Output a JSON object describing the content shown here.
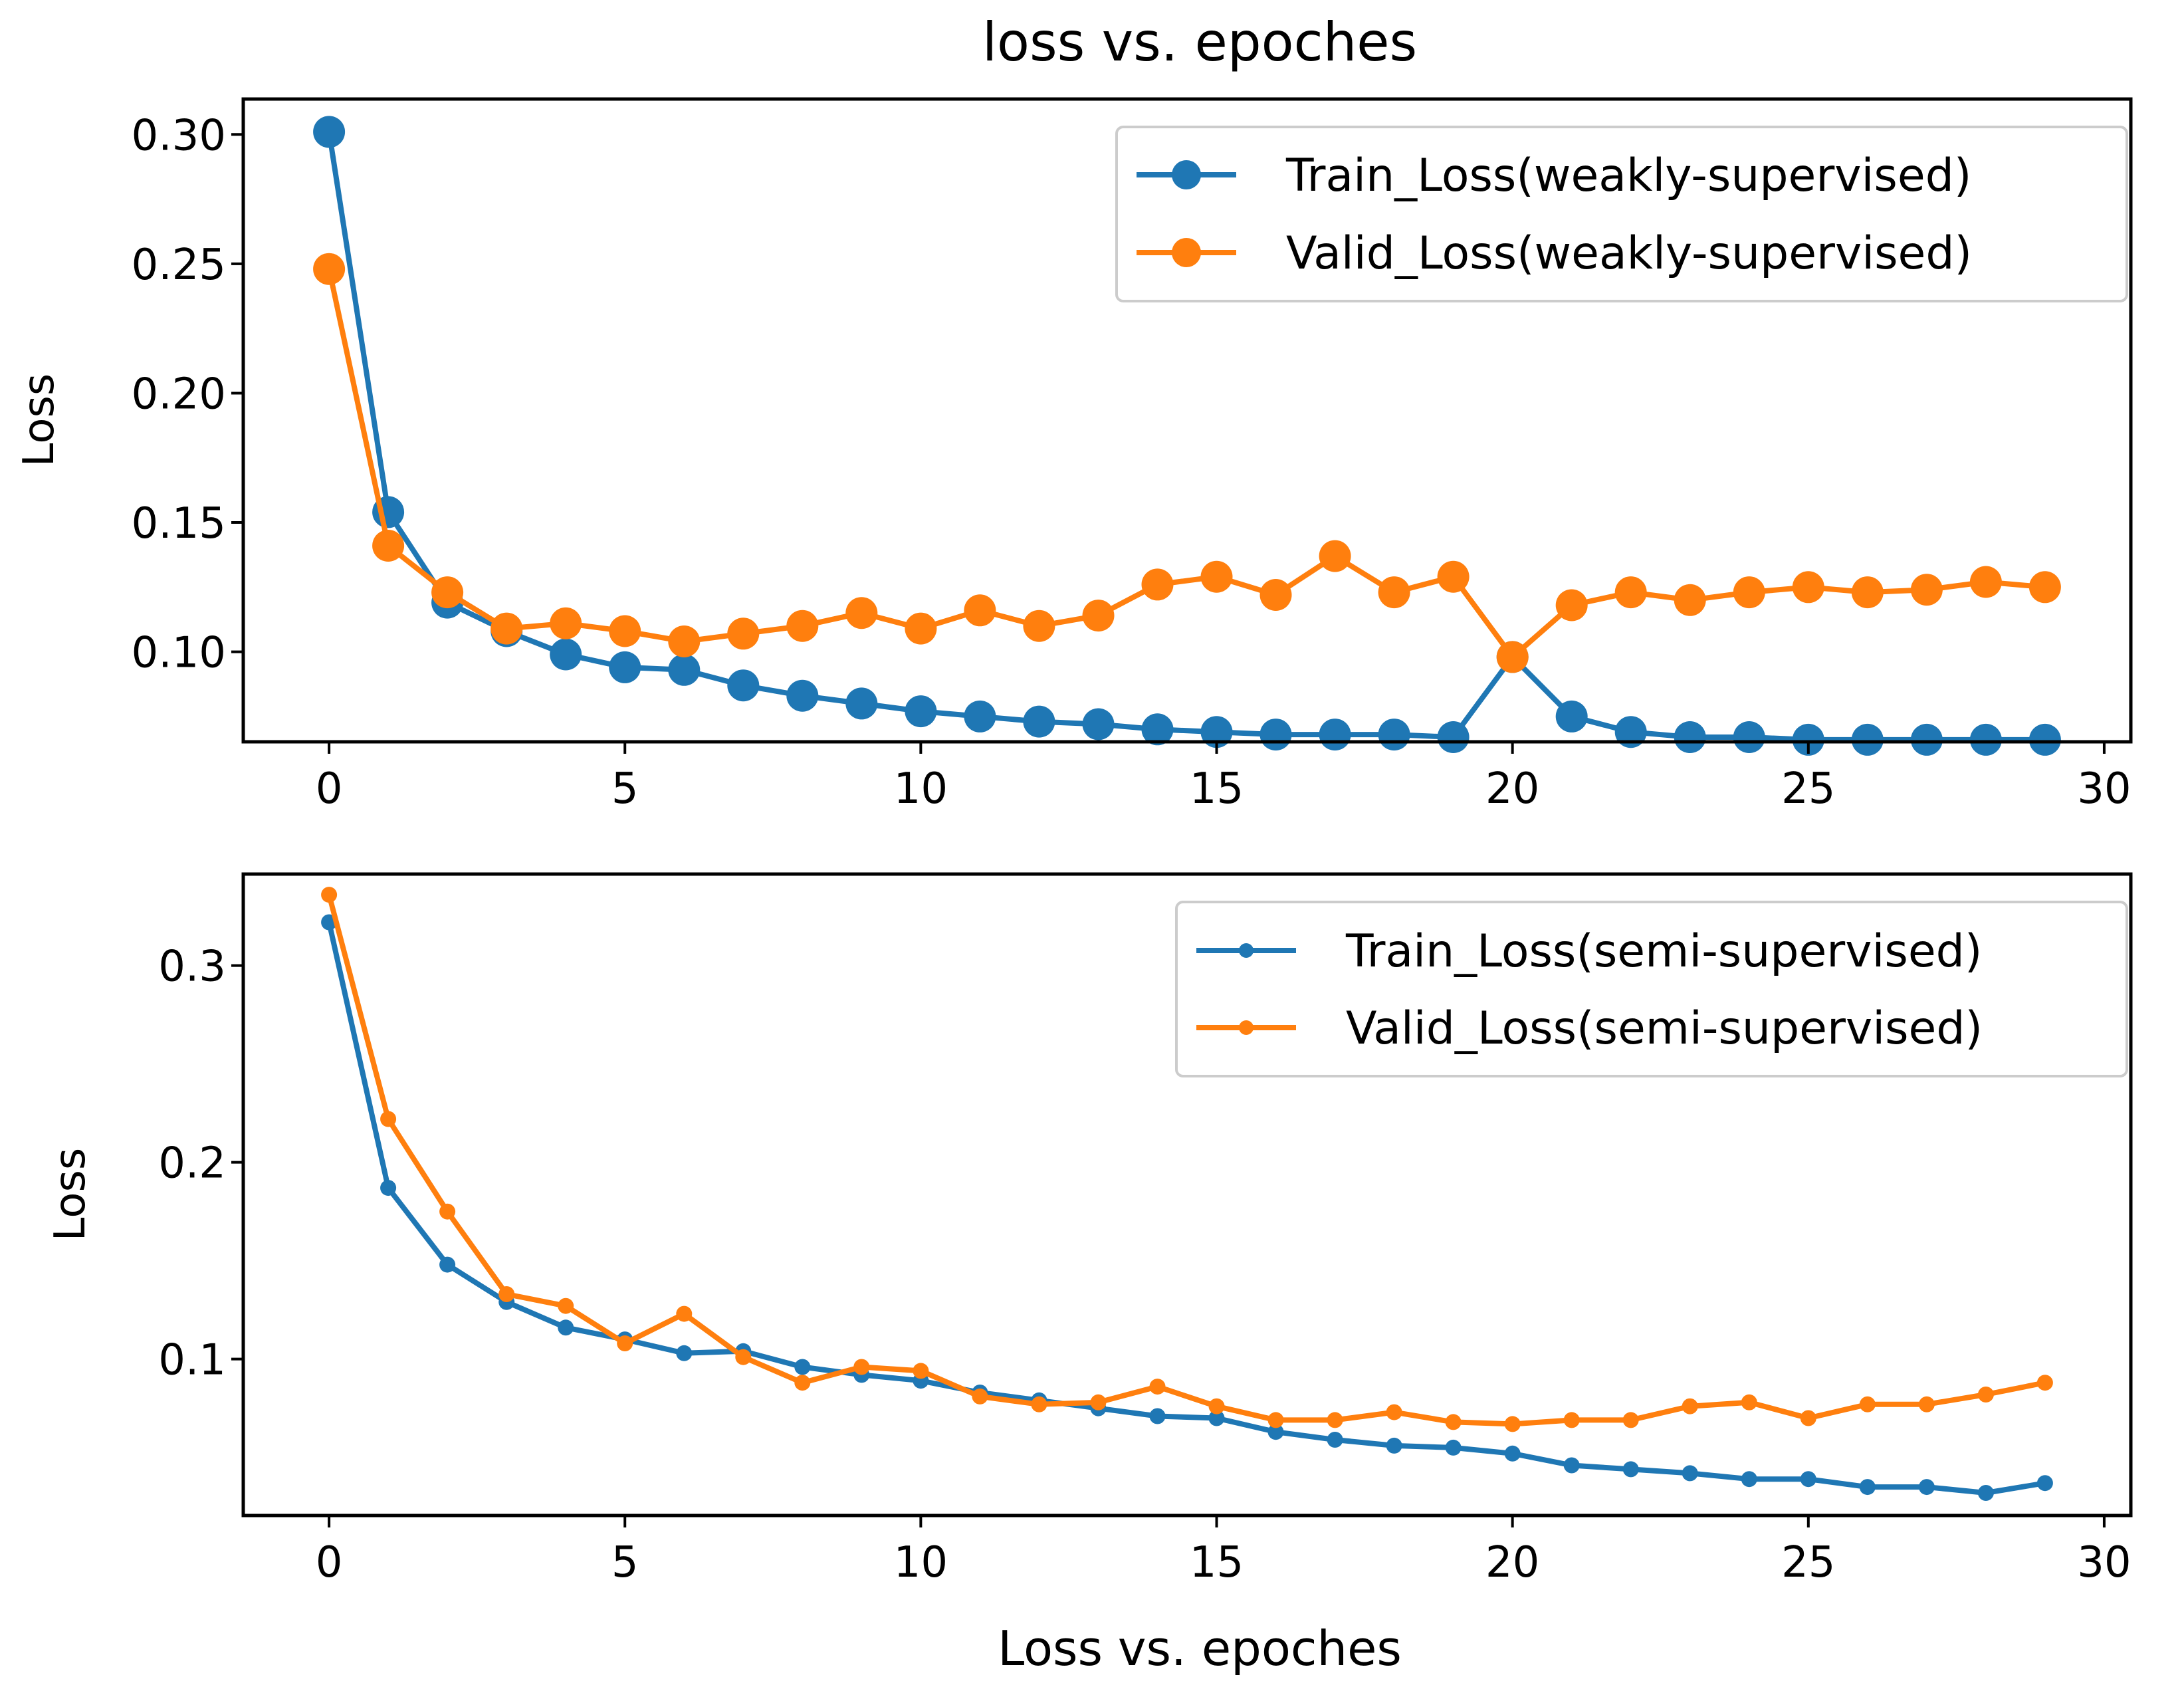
{
  "figure_title": "loss vs. epoches",
  "chart_data": [
    {
      "type": "line",
      "title": "loss vs. epoches",
      "xlabel": "",
      "ylabel": "Loss",
      "xlim": [
        -1.45,
        30.45
      ],
      "ylim": [
        0.0652,
        0.3137
      ],
      "xticks": [
        0,
        5,
        10,
        15,
        20,
        25,
        30
      ],
      "xtick_labels": [
        "0",
        "5",
        "10",
        "15",
        "20",
        "25",
        "30"
      ],
      "yticks": [
        0.1,
        0.15,
        0.2,
        0.25,
        0.3
      ],
      "ytick_labels": [
        "0.10",
        "0.15",
        "0.20",
        "0.25",
        "0.30"
      ],
      "grid": false,
      "legend_position": "top-right",
      "marker_size": "large",
      "x": [
        0,
        1,
        2,
        3,
        4,
        5,
        6,
        7,
        8,
        9,
        10,
        11,
        12,
        13,
        14,
        15,
        16,
        17,
        18,
        19,
        20,
        21,
        22,
        23,
        24,
        25,
        26,
        27,
        28,
        29
      ],
      "series": [
        {
          "name": "Train_Loss(weakly-supervised)",
          "color": "#1f77b4",
          "values": [
            0.301,
            0.154,
            0.119,
            0.108,
            0.099,
            0.094,
            0.093,
            0.087,
            0.083,
            0.08,
            0.077,
            0.075,
            0.073,
            0.072,
            0.07,
            0.069,
            0.068,
            0.068,
            0.068,
            0.067,
            0.098,
            0.075,
            0.069,
            0.067,
            0.067,
            0.066,
            0.066,
            0.066,
            0.066,
            0.066
          ]
        },
        {
          "name": "Valid_Loss(weakly-supervised)",
          "color": "#ff7f0e",
          "values": [
            0.248,
            0.141,
            0.123,
            0.109,
            0.111,
            0.108,
            0.104,
            0.107,
            0.11,
            0.115,
            0.109,
            0.116,
            0.11,
            0.114,
            0.126,
            0.129,
            0.122,
            0.137,
            0.123,
            0.129,
            0.098,
            0.118,
            0.123,
            0.12,
            0.123,
            0.125,
            0.123,
            0.124,
            0.127,
            0.125
          ]
        }
      ]
    },
    {
      "type": "line",
      "title": "",
      "xlabel": "Loss vs. epoches",
      "ylabel": "Loss",
      "xlim": [
        -1.45,
        30.45
      ],
      "ylim": [
        0.0205,
        0.3465
      ],
      "xticks": [
        0,
        5,
        10,
        15,
        20,
        25,
        30
      ],
      "xtick_labels": [
        "0",
        "5",
        "10",
        "15",
        "20",
        "25",
        "30"
      ],
      "yticks": [
        0.1,
        0.2,
        0.3
      ],
      "ytick_labels": [
        "0.1",
        "0.2",
        "0.3"
      ],
      "grid": false,
      "legend_position": "top-right",
      "marker_size": "small",
      "x": [
        0,
        1,
        2,
        3,
        4,
        5,
        6,
        7,
        8,
        9,
        10,
        11,
        12,
        13,
        14,
        15,
        16,
        17,
        18,
        19,
        20,
        21,
        22,
        23,
        24,
        25,
        26,
        27,
        28,
        29
      ],
      "series": [
        {
          "name": "Train_Loss(semi-supervised)",
          "color": "#1f77b4",
          "values": [
            0.322,
            0.187,
            0.148,
            0.129,
            0.116,
            0.11,
            0.103,
            0.104,
            0.096,
            0.092,
            0.089,
            0.083,
            0.079,
            0.075,
            0.071,
            0.07,
            0.063,
            0.059,
            0.056,
            0.055,
            0.052,
            0.046,
            0.044,
            0.042,
            0.039,
            0.039,
            0.035,
            0.035,
            0.032,
            0.037
          ]
        },
        {
          "name": "Valid_Loss(semi-supervised)",
          "color": "#ff7f0e",
          "values": [
            0.336,
            0.222,
            0.175,
            0.133,
            0.127,
            0.108,
            0.123,
            0.101,
            0.088,
            0.096,
            0.094,
            0.081,
            0.077,
            0.078,
            0.086,
            0.076,
            0.069,
            0.069,
            0.073,
            0.068,
            0.067,
            0.069,
            0.069,
            0.076,
            0.078,
            0.07,
            0.077,
            0.077,
            0.082,
            0.088
          ]
        }
      ]
    }
  ]
}
